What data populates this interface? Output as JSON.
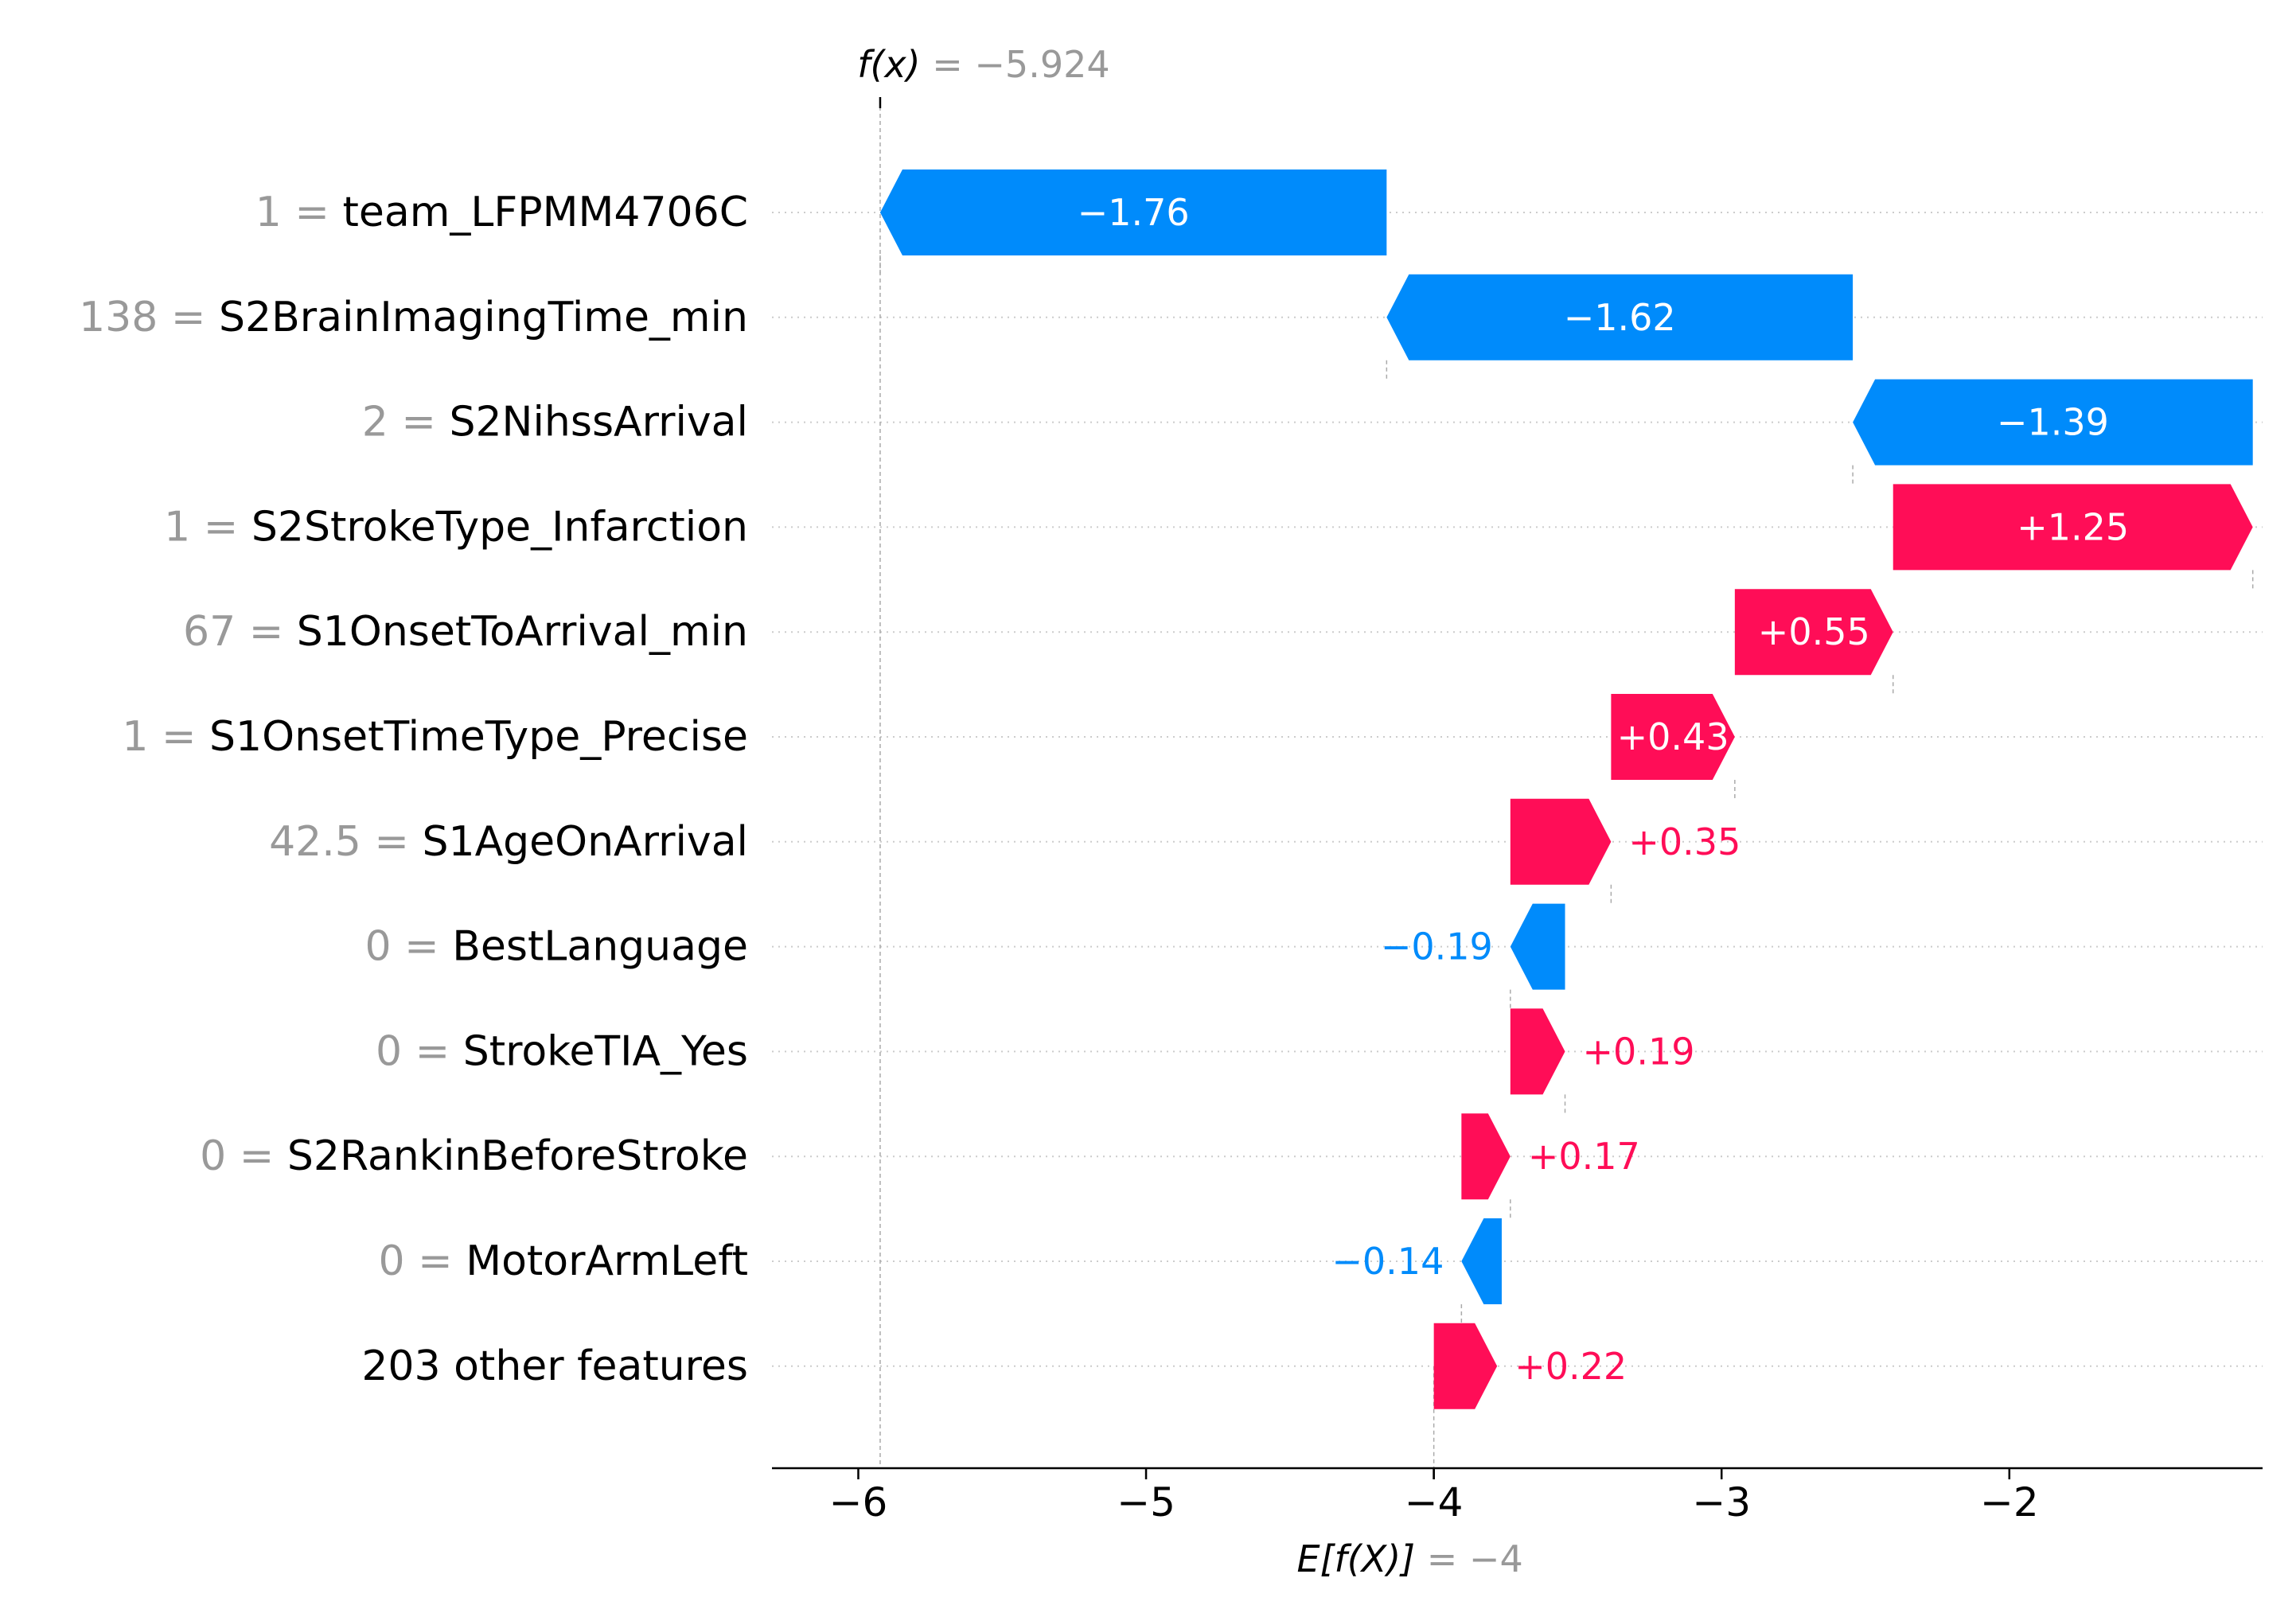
{
  "chart_data": {
    "type": "waterfall",
    "colors": {
      "positive": "#ff0d57",
      "negative": "#008bfb",
      "value_gray": "#999999",
      "text": "#000000"
    },
    "fx": {
      "label_prefix": "f(x)",
      "label_value": " = −5.924",
      "value": -5.924
    },
    "ex": {
      "label_prefix": "E[f(X)]",
      "label_value": " = −4",
      "value": -4
    },
    "xaxis": {
      "min": -6.3,
      "max": -1.12,
      "ticks": [
        -6,
        -5,
        -4,
        -3,
        -2
      ],
      "tick_labels": [
        "−6",
        "−5",
        "−4",
        "−3",
        "−2"
      ]
    },
    "features": [
      {
        "value_text": "1 =",
        "name": "team_LFPMM4706C",
        "shap": -1.76,
        "label": "−1.76",
        "start": -4.164,
        "end": -5.924
      },
      {
        "value_text": "138 =",
        "name": "S2BrainImagingTime_min",
        "shap": -1.62,
        "label": "−1.62",
        "start": -2.544,
        "end": -4.164
      },
      {
        "value_text": "2 =",
        "name": "S2NihssArrival",
        "shap": -1.39,
        "label": "−1.39",
        "start": -1.154,
        "end": -2.544
      },
      {
        "value_text": "1 =",
        "name": "S2StrokeType_Infarction",
        "shap": 1.25,
        "label": "+1.25",
        "start": -2.404,
        "end": -1.154
      },
      {
        "value_text": "67 =",
        "name": "S1OnsetToArrival_min",
        "shap": 0.55,
        "label": "+0.55",
        "start": -2.954,
        "end": -2.404
      },
      {
        "value_text": "1 =",
        "name": "S1OnsetTimeType_Precise",
        "shap": 0.43,
        "label": "+0.43",
        "start": -3.384,
        "end": -2.954
      },
      {
        "value_text": "42.5 =",
        "name": "S1AgeOnArrival",
        "shap": 0.35,
        "label": "+0.35",
        "start": -3.734,
        "end": -3.384
      },
      {
        "value_text": "0 =",
        "name": "BestLanguage",
        "shap": -0.19,
        "label": "−0.19",
        "start": -3.544,
        "end": -3.734
      },
      {
        "value_text": "0 =",
        "name": "StrokeTIA_Yes",
        "shap": 0.19,
        "label": "+0.19",
        "start": -3.734,
        "end": -3.544
      },
      {
        "value_text": "0 =",
        "name": "S2RankinBeforeStroke",
        "shap": 0.17,
        "label": "+0.17",
        "start": -3.904,
        "end": -3.734
      },
      {
        "value_text": "0 =",
        "name": "MotorArmLeft",
        "shap": -0.14,
        "label": "−0.14",
        "start": -3.764,
        "end": -3.904
      },
      {
        "value_text": "",
        "name": "203 other features",
        "shap": 0.22,
        "label": "+0.22",
        "start": -4.0,
        "end": -3.78
      }
    ]
  }
}
